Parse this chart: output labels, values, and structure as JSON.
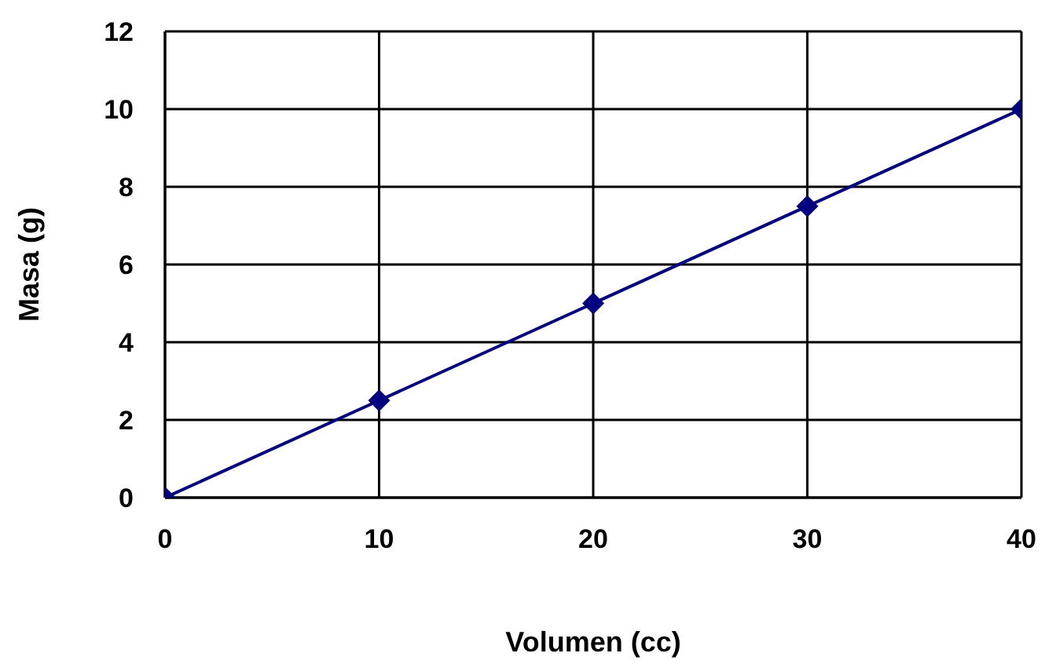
{
  "chart_data": {
    "type": "line",
    "xlabel": "Volumen (cc)",
    "ylabel": "Masa (g)",
    "x": [
      0,
      10,
      20,
      30,
      40
    ],
    "series": [
      {
        "color": "#000080",
        "values": [
          0,
          2.5,
          5,
          7.5,
          10
        ]
      }
    ],
    "xlim": [
      0,
      40
    ],
    "xticks": [
      0,
      10,
      20,
      30,
      40
    ],
    "ylim": [
      0,
      12
    ],
    "yticks": [
      0,
      2,
      4,
      6,
      8,
      10,
      12
    ],
    "grid": true,
    "marker": "diamond",
    "line_style": "solid",
    "legend": false
  }
}
